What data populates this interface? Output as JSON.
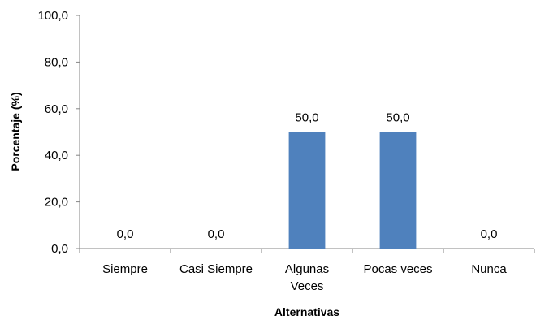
{
  "chart_data": {
    "type": "bar",
    "title": "",
    "xlabel": "Alternativas",
    "ylabel": "Porcentaje (%)",
    "categories": [
      [
        "Siempre"
      ],
      [
        "Casi Siempre"
      ],
      [
        "Algunas",
        "Veces"
      ],
      [
        "Pocas veces"
      ],
      [
        "Nunca"
      ]
    ],
    "values": [
      0,
      0,
      50,
      50,
      0
    ],
    "value_labels": [
      "0,0",
      "0,0",
      "50,0",
      "50,0",
      "0,0"
    ],
    "ylim": [
      0,
      100
    ],
    "yticks": [
      0,
      20,
      40,
      60,
      80,
      100
    ],
    "ytick_labels": [
      "0,0",
      "20,0",
      "40,0",
      "60,0",
      "80,0",
      "100,0"
    ],
    "grid": false,
    "legend": "none",
    "bar_color": "#4f81bd"
  }
}
